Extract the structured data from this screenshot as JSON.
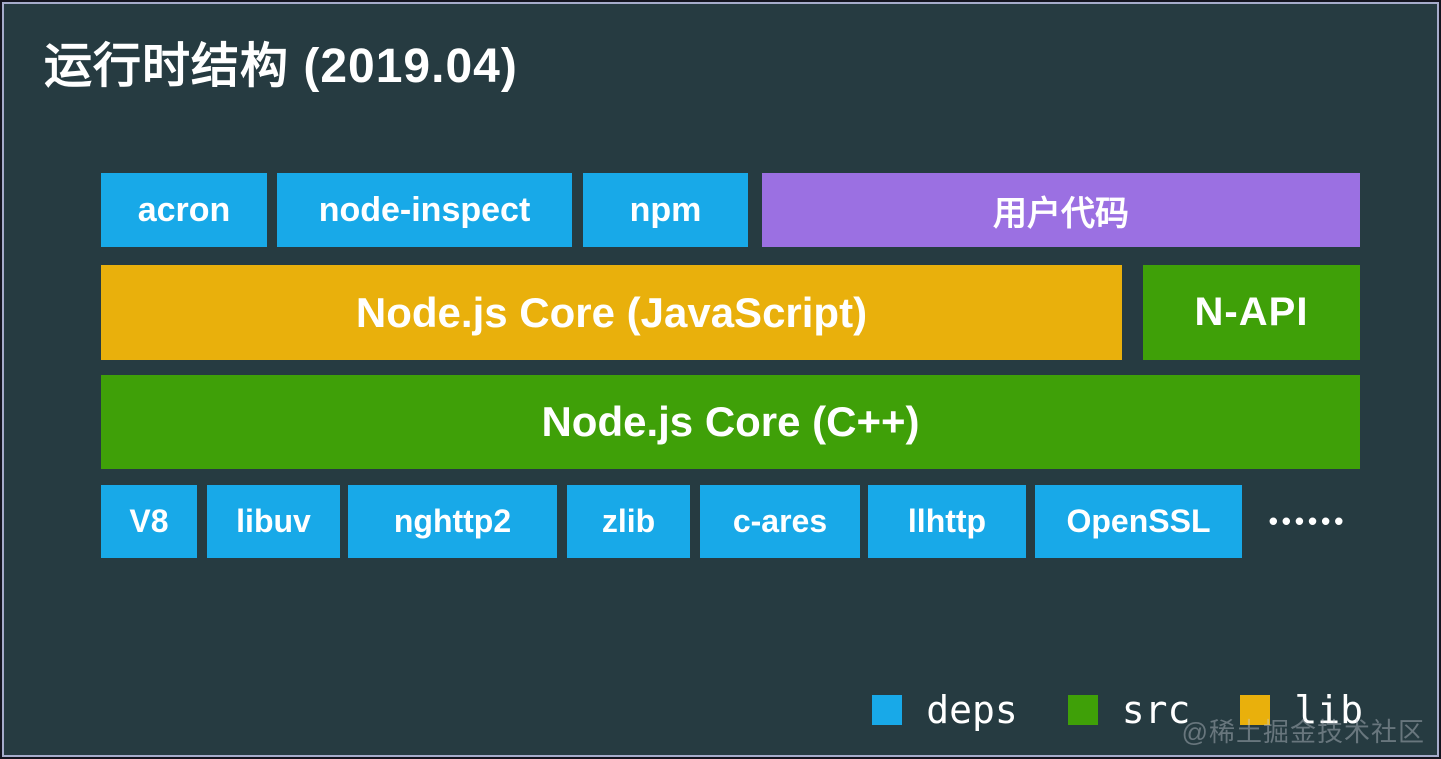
{
  "title": "运行时结构 (2019.04)",
  "palette": {
    "background": "#263b41",
    "deps_blue": "#18a9e8",
    "src_green": "#3fa008",
    "lib_orange": "#e9b00c",
    "user_purple": "#9b70e2"
  },
  "diagram": {
    "row1": {
      "items": [
        {
          "label": "acron",
          "category": "deps"
        },
        {
          "label": "node-inspect",
          "category": "deps"
        },
        {
          "label": "npm",
          "category": "deps"
        },
        {
          "label": "用户代码",
          "category": "user"
        }
      ]
    },
    "row2": {
      "items": [
        {
          "label": "Node.js Core (JavaScript)",
          "category": "lib"
        },
        {
          "label": "N-API",
          "category": "src"
        }
      ]
    },
    "row3": {
      "items": [
        {
          "label": "Node.js Core (C++)",
          "category": "src"
        }
      ]
    },
    "row4": {
      "items": [
        {
          "label": "V8",
          "category": "deps"
        },
        {
          "label": "libuv",
          "category": "deps"
        },
        {
          "label": "nghttp2",
          "category": "deps"
        },
        {
          "label": "zlib",
          "category": "deps"
        },
        {
          "label": "c-ares",
          "category": "deps"
        },
        {
          "label": "llhttp",
          "category": "deps"
        },
        {
          "label": "OpenSSL",
          "category": "deps"
        }
      ],
      "ellipsis": "••••••"
    }
  },
  "legend": {
    "items": [
      {
        "label": "deps",
        "color": "#18a9e8"
      },
      {
        "label": "src",
        "color": "#3fa008"
      },
      {
        "label": "lib",
        "color": "#e9b00c"
      }
    ]
  },
  "watermark": "@稀土掘金技术社区"
}
